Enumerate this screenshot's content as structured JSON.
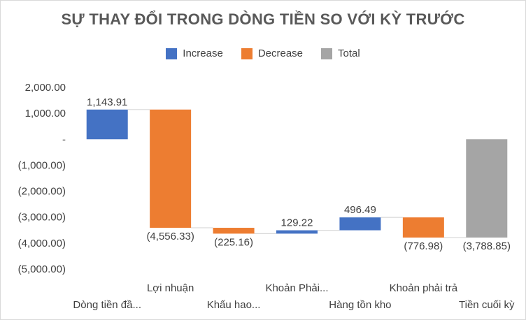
{
  "chart_data": {
    "type": "bar",
    "subtype": "waterfall",
    "title": "SỰ THAY ĐỔI TRONG DÒNG TIỀN SO VỚI KỲ TRƯỚC",
    "legend": {
      "position": "top",
      "entries": [
        {
          "name": "Increase",
          "color": "#4472c4"
        },
        {
          "name": "Decrease",
          "color": "#ed7d31"
        },
        {
          "name": "Total",
          "color": "#a5a5a5"
        }
      ]
    },
    "categories": [
      "Dòng tiền đầ...",
      "Lợi nhuận",
      "Khấu hao...",
      "Khoản Phải...",
      "Hàng tồn kho",
      "Khoản phải trả",
      "Tiền cuối kỳ"
    ],
    "values": [
      1143.91,
      -4556.33,
      -225.16,
      129.22,
      496.49,
      -776.98,
      -3788.85
    ],
    "kinds": [
      "increase",
      "decrease",
      "decrease",
      "increase",
      "increase",
      "decrease",
      "total"
    ],
    "data_labels": [
      "1,143.91",
      "(4,556.33)",
      "(225.16)",
      "129.22",
      "496.49",
      "(776.98)",
      "(3,788.85)"
    ],
    "ylim": [
      -5000,
      2000
    ],
    "yticks": [
      2000,
      1000,
      0,
      -1000,
      -2000,
      -3000,
      -4000,
      -5000
    ],
    "ytick_labels": [
      "2,000.00",
      "1,000.00",
      "-",
      "(1,000.00)",
      "(2,000.00)",
      "(3,000.00)",
      "(4,000.00)",
      "(5,000.00)"
    ],
    "connector_lines": true,
    "grid": false
  }
}
